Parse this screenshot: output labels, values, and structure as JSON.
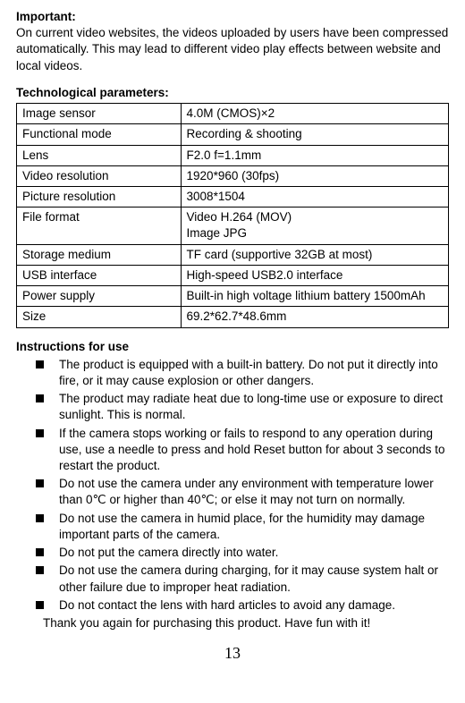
{
  "important": {
    "heading": "Important:",
    "body": "On current video websites, the videos uploaded by users have been compressed automatically. This may lead to different video play effects between website and local videos."
  },
  "tech": {
    "heading": "Technological parameters:",
    "rows": [
      {
        "label": "Image sensor",
        "value": "4.0M (CMOS)×2"
      },
      {
        "label": "Functional mode",
        "value": "Recording & shooting"
      },
      {
        "label": "Lens",
        "value": "F2.0 f=1.1mm"
      },
      {
        "label": "Video resolution",
        "value": "1920*960 (30fps)"
      },
      {
        "label": "Picture resolution",
        "value": "3008*1504"
      },
      {
        "label": "File format",
        "value": "Video H.264 (MOV)\nImage JPG"
      },
      {
        "label": "Storage medium",
        "value": "TF card (supportive 32GB at most)"
      },
      {
        "label": "USB interface",
        "value": "High-speed USB2.0 interface"
      },
      {
        "label": "Power supply",
        "value": "Built-in high voltage lithium battery 1500mAh"
      },
      {
        "label": "Size",
        "value": "69.2*62.7*48.6mm"
      }
    ]
  },
  "instructions": {
    "heading": "Instructions for use",
    "items": [
      "The product is equipped with a built-in battery. Do not put it directly into fire, or it may cause explosion or other dangers.",
      "The product may radiate heat due to long-time use or exposure to direct sunlight. This is normal.",
      "If the camera stops working or fails to respond to any operation during use, use a needle to press and hold Reset button for about 3 seconds to restart the product.",
      "Do not use the camera under any environment with temperature lower than 0℃ or higher than 40℃; or else it may not turn on normally.",
      "Do not use the camera in humid place, for the humidity may damage important parts of the camera.",
      "Do not put the camera directly into water.",
      "Do not use the camera during charging, for it may cause system halt or other failure due to improper heat radiation.",
      "Do not contact the lens with hard articles to avoid any damage."
    ],
    "thanks": "Thank you again for purchasing this product. Have fun with it!"
  },
  "page_number": "13"
}
